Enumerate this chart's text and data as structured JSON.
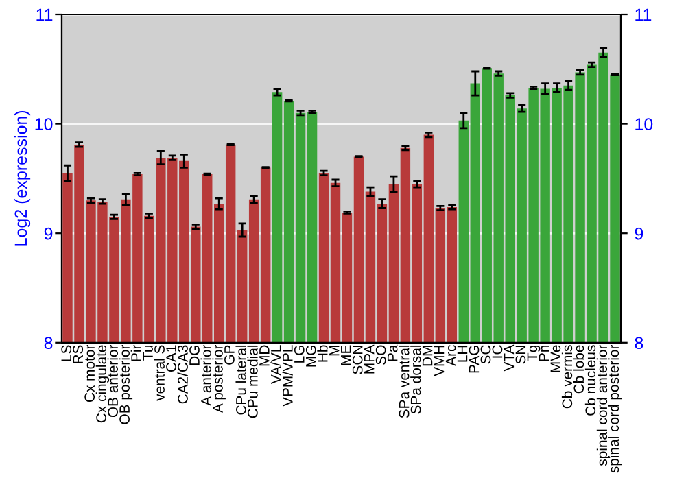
{
  "chart_data": {
    "type": "bar",
    "ylabel": "Log2 (expression)",
    "categories": [
      "LS",
      "RS",
      "Cx motor",
      "Cx cingulate",
      "OB anterior",
      "OB posterior",
      "Pir",
      "Tu",
      "ventral S",
      "CA1",
      "CA2/CA3",
      "DG",
      "A anterior",
      "A posterior",
      "GP",
      "CPu lateral",
      "CPu medial",
      "MD",
      "VA/VL",
      "VPM/VPL",
      "LG",
      "MG",
      "Hb",
      "M",
      "ME",
      "SCN",
      "MPA",
      "SO",
      "Pa",
      "SPa ventral",
      "SPa dorsal",
      "DM",
      "VMH",
      "Arc",
      "LH",
      "PAG",
      "SC",
      "IC",
      "VTA",
      "SN",
      "Tg",
      "Pn",
      "MVe",
      "Cb vermis",
      "Cb lobe",
      "Cb nucleus",
      "spinal cord anterior",
      "spinal cord posterior"
    ],
    "values": [
      9.55,
      9.81,
      9.3,
      9.29,
      9.15,
      9.31,
      9.54,
      9.16,
      9.69,
      9.69,
      9.66,
      9.06,
      9.54,
      9.27,
      9.81,
      9.03,
      9.31,
      9.6,
      10.29,
      10.21,
      10.1,
      10.11,
      9.55,
      9.46,
      9.19,
      9.7,
      9.38,
      9.27,
      9.45,
      9.78,
      9.45,
      9.9,
      9.23,
      9.24,
      10.03,
      10.37,
      10.51,
      10.46,
      10.26,
      10.14,
      10.33,
      10.32,
      10.33,
      10.35,
      10.47,
      10.54,
      10.65,
      10.45
    ],
    "errors": [
      0.07,
      0.02,
      0.02,
      0.02,
      0.02,
      0.05,
      0.01,
      0.02,
      0.06,
      0.02,
      0.06,
      0.02,
      0.005,
      0.05,
      0.005,
      0.06,
      0.03,
      0.005,
      0.03,
      0.005,
      0.02,
      0.01,
      0.02,
      0.03,
      0.01,
      0.005,
      0.04,
      0.04,
      0.07,
      0.02,
      0.03,
      0.02,
      0.02,
      0.02,
      0.07,
      0.11,
      0.005,
      0.02,
      0.02,
      0.03,
      0.01,
      0.05,
      0.04,
      0.04,
      0.02,
      0.02,
      0.04,
      0.005
    ],
    "colors": [
      "#b83a3a",
      "#b83a3a",
      "#b83a3a",
      "#b83a3a",
      "#b83a3a",
      "#b83a3a",
      "#b83a3a",
      "#b83a3a",
      "#b83a3a",
      "#b83a3a",
      "#b83a3a",
      "#b83a3a",
      "#b83a3a",
      "#b83a3a",
      "#b83a3a",
      "#b83a3a",
      "#b83a3a",
      "#b83a3a",
      "#3aa63a",
      "#3aa63a",
      "#3aa63a",
      "#3aa63a",
      "#b83a3a",
      "#b83a3a",
      "#b83a3a",
      "#b83a3a",
      "#b83a3a",
      "#b83a3a",
      "#b83a3a",
      "#b83a3a",
      "#b83a3a",
      "#b83a3a",
      "#b83a3a",
      "#b83a3a",
      "#3aa63a",
      "#3aa63a",
      "#3aa63a",
      "#3aa63a",
      "#3aa63a",
      "#3aa63a",
      "#3aa63a",
      "#3aa63a",
      "#3aa63a",
      "#3aa63a",
      "#3aa63a",
      "#3aa63a",
      "#3aa63a",
      "#3aa63a"
    ],
    "ylim": [
      8,
      11
    ],
    "yticks": [
      8,
      9,
      10,
      11
    ],
    "y2lim": [
      8,
      11
    ],
    "y2ticks": [
      8,
      9,
      10,
      11
    ],
    "grid": "y"
  }
}
